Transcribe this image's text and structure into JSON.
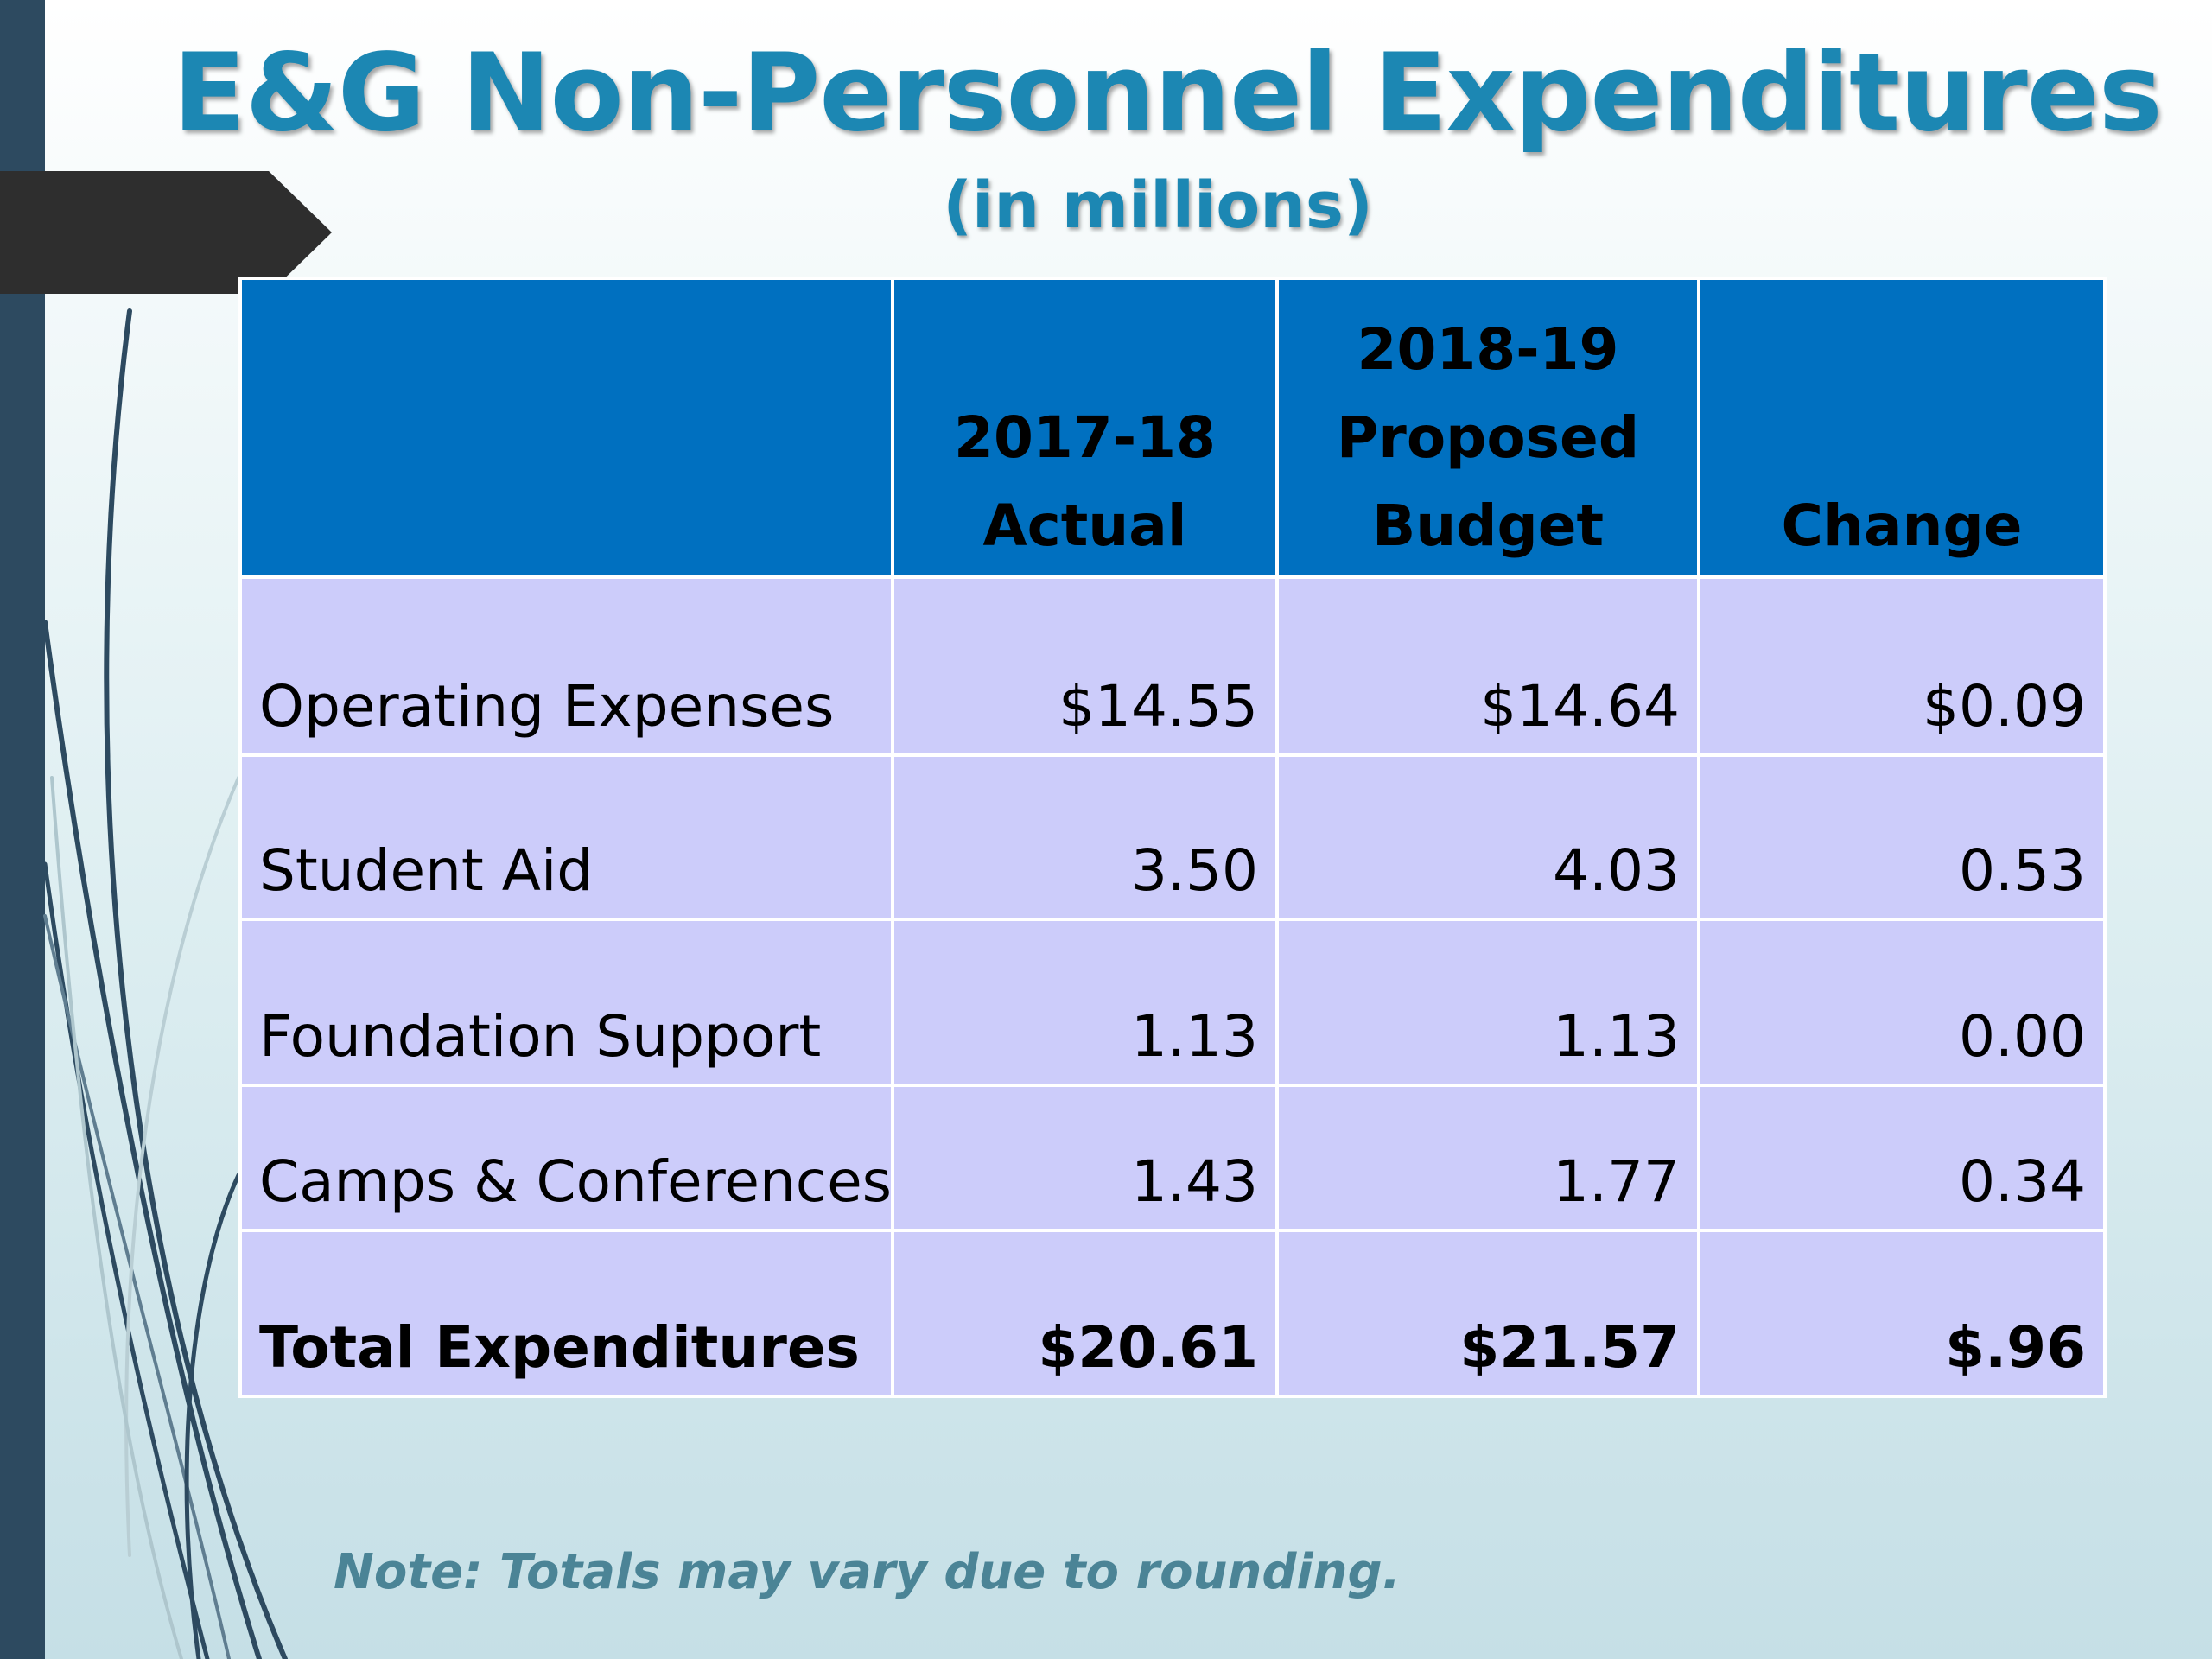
{
  "slide": {
    "title": "E&G Non-Personnel Expenditures",
    "subtitle": "(in millions)",
    "note": "Note: Totals may vary due to rounding."
  },
  "table": {
    "headers": [
      {
        "lines": [
          ""
        ]
      },
      {
        "lines": [
          "2017-18",
          "Actual"
        ]
      },
      {
        "lines": [
          "2018-19",
          "Proposed",
          "Budget"
        ]
      },
      {
        "lines": [
          "Change"
        ]
      }
    ],
    "rows": [
      {
        "label": "Operating Expenses",
        "actual": "$14.55",
        "proposed": "$14.64",
        "change": "$0.09"
      },
      {
        "label": "Student Aid",
        "actual": "3.50",
        "proposed": "4.03",
        "change": "0.53"
      },
      {
        "label": "Foundation Support",
        "actual": "1.13",
        "proposed": "1.13",
        "change": "0.00"
      },
      {
        "label": "Camps & Conferences",
        "actual": "1.43",
        "proposed": "1.77",
        "change": "0.34"
      },
      {
        "label": "Total Expenditures",
        "actual": "$20.61",
        "proposed": "$21.57",
        "change": "$.96"
      }
    ]
  },
  "colors": {
    "title": "#1c87b3",
    "header_bg": "#0070c0",
    "cell_bg": "#ccccfa",
    "left_bar": "#2d4a60",
    "arrow_tab": "#2e2e2e",
    "note": "#4b8496"
  }
}
